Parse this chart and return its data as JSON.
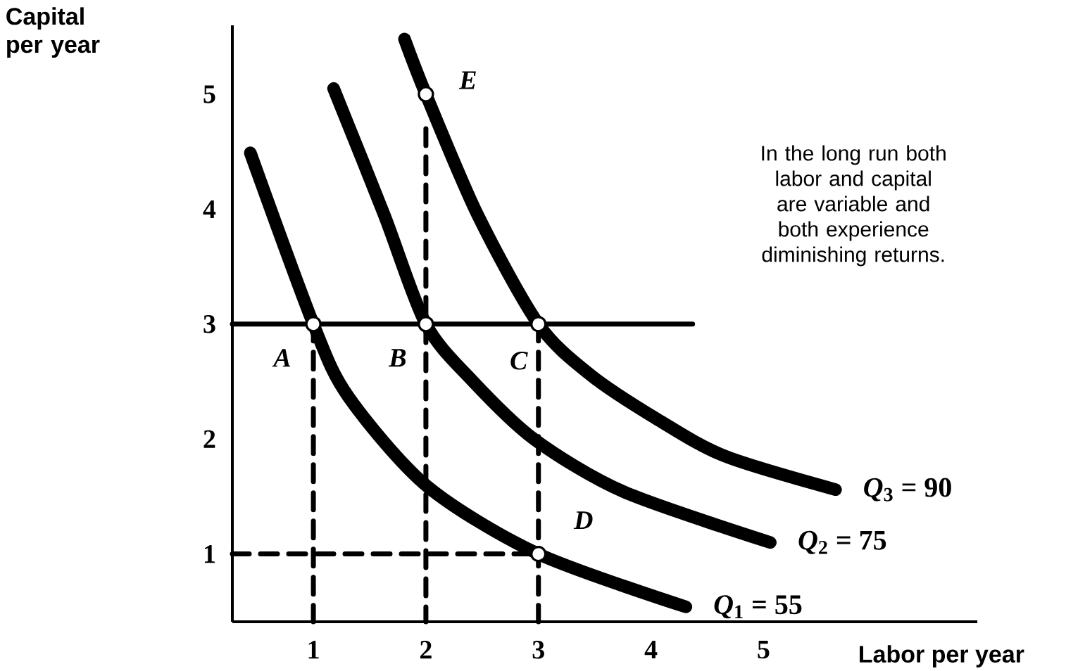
{
  "chart_data": {
    "type": "line",
    "xlabel": "Labor per year",
    "ylabel": "Capital per year",
    "xlim": [
      0.28,
      6.9
    ],
    "ylim": [
      0.41,
      5.6
    ],
    "xticks": [
      1,
      2,
      3,
      4,
      5
    ],
    "yticks": [
      1,
      2,
      3,
      4,
      5
    ],
    "series": [
      {
        "name": "*Q*$_{1}$ = 55",
        "color": "#000000",
        "type": "line",
        "x": [
          0.44,
          1,
          1.31,
          2.01,
          3,
          4.31
        ],
        "values": [
          4.49,
          3,
          2.37,
          1.59,
          1,
          0.54
        ]
      },
      {
        "name": "*Q*$_{2}$ = 75",
        "color": "#000000",
        "type": "line",
        "x": [
          1.18,
          1.63,
          2,
          2.41,
          2.96,
          3.76,
          5.06
        ],
        "values": [
          5.05,
          3.95,
          3,
          2.51,
          2.0,
          1.54,
          1.1
        ]
      },
      {
        "name": "*Q*$_{3}$ = 90",
        "color": "#000000",
        "type": "line",
        "x": [
          1.81,
          2,
          2.46,
          3,
          3.46,
          4.06,
          4.66,
          5.64
        ],
        "values": [
          5.48,
          5,
          3.95,
          3,
          2.56,
          2.17,
          1.85,
          1.56
        ]
      },
      {
        "color": "#000000",
        "type": "line",
        "x": [
          0.28,
          4.37
        ],
        "values": [
          3,
          3
        ]
      },
      {
        "color": "#000000",
        "type": "line",
        "line_style": "dashed",
        "x": [
          1,
          1
        ],
        "values": [
          3,
          0.41
        ]
      },
      {
        "color": "#000000",
        "type": "line",
        "line_style": "dashed",
        "x": [
          2,
          2
        ],
        "values": [
          4.7,
          0.41
        ]
      },
      {
        "color": "#000000",
        "type": "line",
        "line_style": "dashed",
        "x": [
          3,
          3
        ],
        "values": [
          3,
          0.41
        ]
      },
      {
        "color": "#000000",
        "type": "line",
        "line_style": "dashed",
        "x": [
          0.28,
          3
        ],
        "values": [
          1,
          1
        ]
      },
      {
        "color": "#000000",
        "type": "scatter",
        "marker": "circle",
        "x": [
          1,
          2,
          3,
          3,
          2
        ],
        "values": [
          3,
          3,
          3,
          1,
          5
        ]
      }
    ],
    "annotations": [
      {
        "text": "A",
        "x": 1,
        "y": 3
      },
      {
        "text": "B",
        "x": 2,
        "y": 3
      },
      {
        "text": "C",
        "x": 3,
        "y": 3
      },
      {
        "text": "D",
        "x": 3,
        "y": 1
      },
      {
        "text": "E",
        "x": 2,
        "y": 5
      },
      "In the long run both labor and capital are variable and both experience diminishing returns."
    ]
  }
}
